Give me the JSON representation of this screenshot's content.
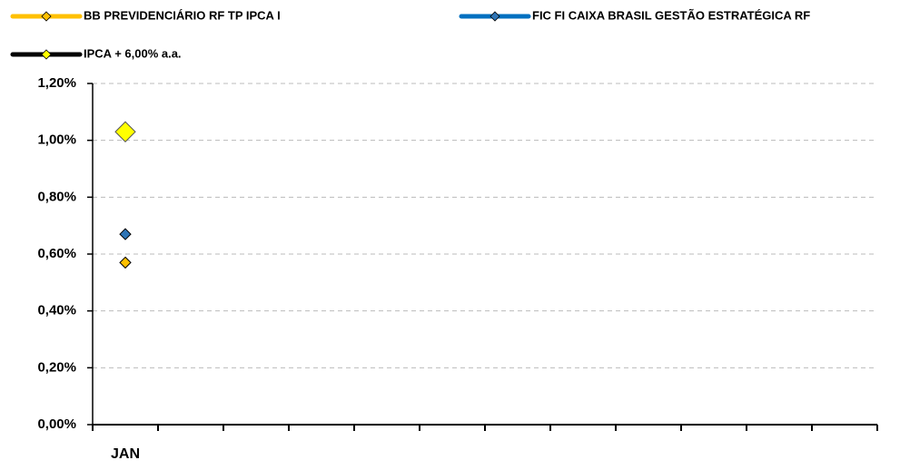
{
  "chart_data": {
    "type": "line",
    "categories": [
      "JAN",
      null,
      null,
      null,
      null,
      null,
      null,
      null,
      null,
      null,
      null,
      null
    ],
    "series": [
      {
        "name": "BB PREVIDENCIÁRIO RF TP IPCA I",
        "color": "#FFC000",
        "marker_color": "#FFC000",
        "values": [
          0.57,
          null,
          null,
          null,
          null,
          null,
          null,
          null,
          null,
          null,
          null,
          null
        ]
      },
      {
        "name": "FIC FI CAIXA BRASIL GESTÃO ESTRATÉGICA RF",
        "color": "#0070C0",
        "marker_color": "#2E75B6",
        "values": [
          0.67,
          null,
          null,
          null,
          null,
          null,
          null,
          null,
          null,
          null,
          null,
          null
        ]
      },
      {
        "name": "IPCA + 6,00% a.a.",
        "color": "#000000",
        "marker_color": "#FFFF00",
        "values": [
          1.03,
          null,
          null,
          null,
          null,
          null,
          null,
          null,
          null,
          null,
          null,
          null
        ]
      }
    ],
    "ylim": [
      0,
      1.2
    ],
    "yticks": [
      {
        "value": 0,
        "label": "0,00%"
      },
      {
        "value": 0.2,
        "label": "0,20%"
      },
      {
        "value": 0.4,
        "label": "0,40%"
      },
      {
        "value": 0.6,
        "label": "0,60%"
      },
      {
        "value": 0.8,
        "label": "0,80%"
      },
      {
        "value": 1.0,
        "label": "1,00%"
      },
      {
        "value": 1.2,
        "label": "1,20%"
      }
    ],
    "grid": true,
    "legend": "top"
  }
}
